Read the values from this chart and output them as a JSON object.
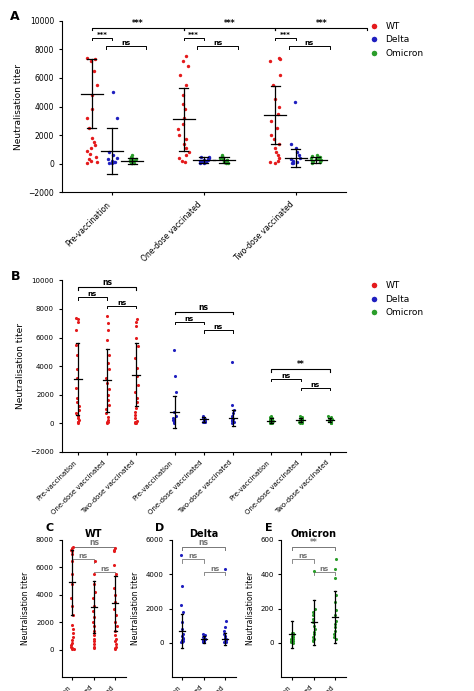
{
  "colors": {
    "WT": "#e41a1c",
    "Delta": "#1f1fbf",
    "Omicron": "#2a9d2a"
  },
  "groups": [
    "Pre-vaccination",
    "One-dose vaccinated",
    "Two-dose vaccinated"
  ],
  "panel_A": {
    "title": "A",
    "ylabel": "Neutralisation titer",
    "ylim": [
      -2000,
      10000
    ],
    "yticks": [
      -2000,
      0,
      2000,
      4000,
      6000,
      8000,
      10000
    ],
    "WT_pts": {
      "Pre-vaccination": [
        7400,
        7300,
        7200,
        6500,
        5500,
        4800,
        3800,
        3200,
        2500,
        1800,
        1500,
        1300,
        1100,
        900,
        700,
        500,
        350,
        200,
        100,
        60
      ],
      "One-dose vaccinated": [
        7500,
        7200,
        6800,
        6200,
        5500,
        4800,
        4200,
        3800,
        3200,
        2800,
        2400,
        2000,
        1700,
        1400,
        1100,
        800,
        600,
        400,
        200,
        100
      ],
      "Two-dose vaccinated": [
        7400,
        7300,
        7200,
        6200,
        5500,
        4500,
        4000,
        3500,
        3000,
        2500,
        2000,
        1700,
        1400,
        1100,
        800,
        600,
        400,
        200,
        100,
        60
      ]
    },
    "Delta_pts": {
      "Pre-vaccination": [
        5000,
        3200,
        800,
        600,
        400,
        300,
        200,
        150,
        100,
        60,
        40
      ],
      "One-dose vaccinated": [
        500,
        450,
        380,
        320,
        280,
        240,
        200,
        160,
        130,
        100,
        80,
        60
      ],
      "Two-dose vaccinated": [
        4300,
        1400,
        1100,
        800,
        600,
        400,
        300,
        200,
        100,
        60,
        40
      ]
    },
    "Omicron_pts": {
      "Pre-vaccination": [
        600,
        500,
        420,
        380,
        330,
        280,
        240,
        200,
        160,
        130,
        100,
        80,
        60,
        40
      ],
      "One-dose vaccinated": [
        600,
        540,
        480,
        420,
        380,
        330,
        280,
        230,
        190,
        150,
        110,
        80,
        60
      ],
      "Two-dose vaccinated": [
        600,
        550,
        500,
        450,
        400,
        350,
        300,
        260,
        220,
        180,
        150,
        110,
        80
      ]
    },
    "WT_mean": {
      "Pre-vaccination": 4900,
      "One-dose vaccinated": 3100,
      "Two-dose vaccinated": 3400
    },
    "WT_err": {
      "Pre-vaccination": 2400,
      "One-dose vaccinated": 2200,
      "Two-dose vaccinated": 2000
    },
    "Delta_mean": {
      "Pre-vaccination": 900,
      "One-dose vaccinated": 260,
      "Two-dose vaccinated": 400
    },
    "Delta_err": {
      "Pre-vaccination": 1600,
      "One-dose vaccinated": 180,
      "Two-dose vaccinated": 600
    },
    "Omicron_mean": {
      "Pre-vaccination": 200,
      "One-dose vaccinated": 280,
      "Two-dose vaccinated": 280
    },
    "Omicron_err": {
      "Pre-vaccination": 200,
      "One-dose vaccinated": 200,
      "Two-dose vaccinated": 200
    }
  },
  "panel_B": {
    "title": "B",
    "ylabel": "Neutralisation titer",
    "ylim": [
      -2000,
      10000
    ],
    "yticks": [
      -2000,
      0,
      2000,
      4000,
      6000,
      8000,
      10000
    ],
    "WT_pts": {
      "Pre-vaccination": [
        7400,
        7300,
        7100,
        6500,
        5500,
        4800,
        3800,
        3200,
        2500,
        1800,
        1500,
        1200,
        900,
        700,
        500,
        350,
        200,
        100,
        60,
        30
      ],
      "One-dose vaccinated": [
        7500,
        7000,
        6500,
        5800,
        4800,
        4200,
        3800,
        3200,
        2800,
        2400,
        2000,
        1600,
        1300,
        1000,
        700,
        450,
        250,
        100,
        60,
        30
      ],
      "Two-dose vaccinated": [
        7300,
        7100,
        6800,
        6000,
        5400,
        4600,
        3900,
        3300,
        2700,
        2200,
        1800,
        1500,
        1100,
        800,
        550,
        350,
        180,
        80,
        40,
        20
      ]
    },
    "Delta_pts": {
      "Pre-vaccination": [
        5100,
        3300,
        2200,
        800,
        500,
        400,
        300,
        200,
        150,
        100,
        60,
        40
      ],
      "One-dose vaccinated": [
        500,
        430,
        370,
        320,
        280,
        240,
        200,
        170,
        140,
        110,
        80,
        60
      ],
      "Two-dose vaccinated": [
        4300,
        1300,
        900,
        700,
        500,
        380,
        280,
        200,
        150,
        100,
        70,
        50
      ]
    },
    "Omicron_pts": {
      "Pre-vaccination": [
        500,
        440,
        380,
        330,
        280,
        230,
        190,
        160,
        130,
        100,
        70,
        50,
        35,
        20
      ],
      "One-dose vaccinated": [
        500,
        450,
        400,
        360,
        320,
        280,
        240,
        200,
        160,
        130,
        100,
        70,
        50,
        30
      ],
      "Two-dose vaccinated": [
        500,
        450,
        400,
        360,
        310,
        270,
        230,
        190,
        160,
        130,
        100,
        75,
        55,
        35
      ]
    },
    "WT_mean": {
      "Pre-vaccination": 3100,
      "One-dose vaccinated": 3000,
      "Two-dose vaccinated": 3400
    },
    "WT_err": {
      "Pre-vaccination": 2500,
      "One-dose vaccinated": 2200,
      "Two-dose vaccinated": 2200
    },
    "Delta_mean": {
      "Pre-vaccination": 800,
      "One-dose vaccinated": 270,
      "Two-dose vaccinated": 380
    },
    "Delta_err": {
      "Pre-vaccination": 1100,
      "One-dose vaccinated": 200,
      "Two-dose vaccinated": 550
    },
    "Omicron_mean": {
      "Pre-vaccination": 180,
      "One-dose vaccinated": 220,
      "Two-dose vaccinated": 230
    },
    "Omicron_err": {
      "Pre-vaccination": 160,
      "One-dose vaccinated": 160,
      "Two-dose vaccinated": 160
    }
  },
  "panel_C": {
    "title": "WT",
    "panel_label": "C",
    "ylabel": "Neutralisation titer",
    "ylim": [
      -2000,
      8000
    ],
    "yticks": [
      0,
      2000,
      4000,
      6000,
      8000
    ],
    "pts": {
      "Pre-vaccination": [
        7500,
        7400,
        7300,
        7200,
        7000,
        6500,
        5500,
        4800,
        3800,
        3200,
        2500,
        1800,
        1500,
        1200,
        900,
        700,
        500,
        350,
        200,
        100,
        60,
        30
      ],
      "One-dose vaccinated": [
        6500,
        5500,
        4800,
        4200,
        3800,
        3200,
        2800,
        2400,
        2000,
        1700,
        1400,
        1100,
        800,
        600,
        400,
        200,
        100
      ],
      "Two-dose vaccinated": [
        7400,
        7300,
        7200,
        6200,
        5500,
        4500,
        4000,
        3500,
        3000,
        2500,
        2000,
        1700,
        1400,
        1100,
        800,
        600,
        400,
        200,
        100,
        60
      ]
    },
    "mean": {
      "Pre-vaccination": 4900,
      "One-dose vaccinated": 3100,
      "Two-dose vaccinated": 3400
    },
    "err": {
      "Pre-vaccination": 2400,
      "One-dose vaccinated": 1900,
      "Two-dose vaccinated": 2000
    },
    "color": "#e41a1c"
  },
  "panel_D": {
    "title": "Delta",
    "panel_label": "D",
    "ylabel": "Neutralisation titer",
    "ylim": [
      -2000,
      6000
    ],
    "yticks": [
      0,
      2000,
      4000,
      6000
    ],
    "pts": {
      "Pre-vaccination": [
        5100,
        3300,
        2200,
        1800,
        1200,
        800,
        500,
        400,
        300,
        200,
        150,
        100,
        60,
        40
      ],
      "One-dose vaccinated": [
        500,
        430,
        370,
        320,
        280,
        240,
        200,
        170,
        140,
        110,
        80,
        60,
        40,
        30
      ],
      "Two-dose vaccinated": [
        4300,
        1300,
        900,
        700,
        500,
        380,
        280,
        200,
        150,
        100,
        70,
        50,
        40,
        30
      ]
    },
    "mean": {
      "Pre-vaccination": 700,
      "One-dose vaccinated": 200,
      "Two-dose vaccinated": 250
    },
    "err": {
      "Pre-vaccination": 1000,
      "One-dose vaccinated": 200,
      "Two-dose vaccinated": 350
    },
    "color": "#1f1fbf"
  },
  "panel_E": {
    "title": "Omicron",
    "panel_label": "E",
    "ylabel": "Neutralisation titer",
    "ylim": [
      -200,
      600
    ],
    "yticks": [
      0,
      200,
      400,
      600
    ],
    "pts": {
      "Pre-vaccination": [
        60,
        55,
        45,
        40,
        35,
        30,
        25,
        20,
        15,
        10,
        8,
        5,
        3,
        2
      ],
      "One-dose vaccinated": [
        420,
        200,
        180,
        160,
        140,
        120,
        100,
        80,
        65,
        50,
        35,
        25,
        15,
        8
      ],
      "Two-dose vaccinated": [
        490,
        430,
        380,
        280,
        240,
        190,
        160,
        130,
        110,
        90,
        70,
        50,
        35,
        20
      ]
    },
    "mean": {
      "Pre-vaccination": 50,
      "One-dose vaccinated": 120,
      "Two-dose vaccinated": 150
    },
    "err": {
      "Pre-vaccination": 80,
      "One-dose vaccinated": 130,
      "Two-dose vaccinated": 150
    },
    "color": "#2a9d2a"
  },
  "legend_labels": [
    "WT",
    "Delta",
    "Omicron"
  ]
}
